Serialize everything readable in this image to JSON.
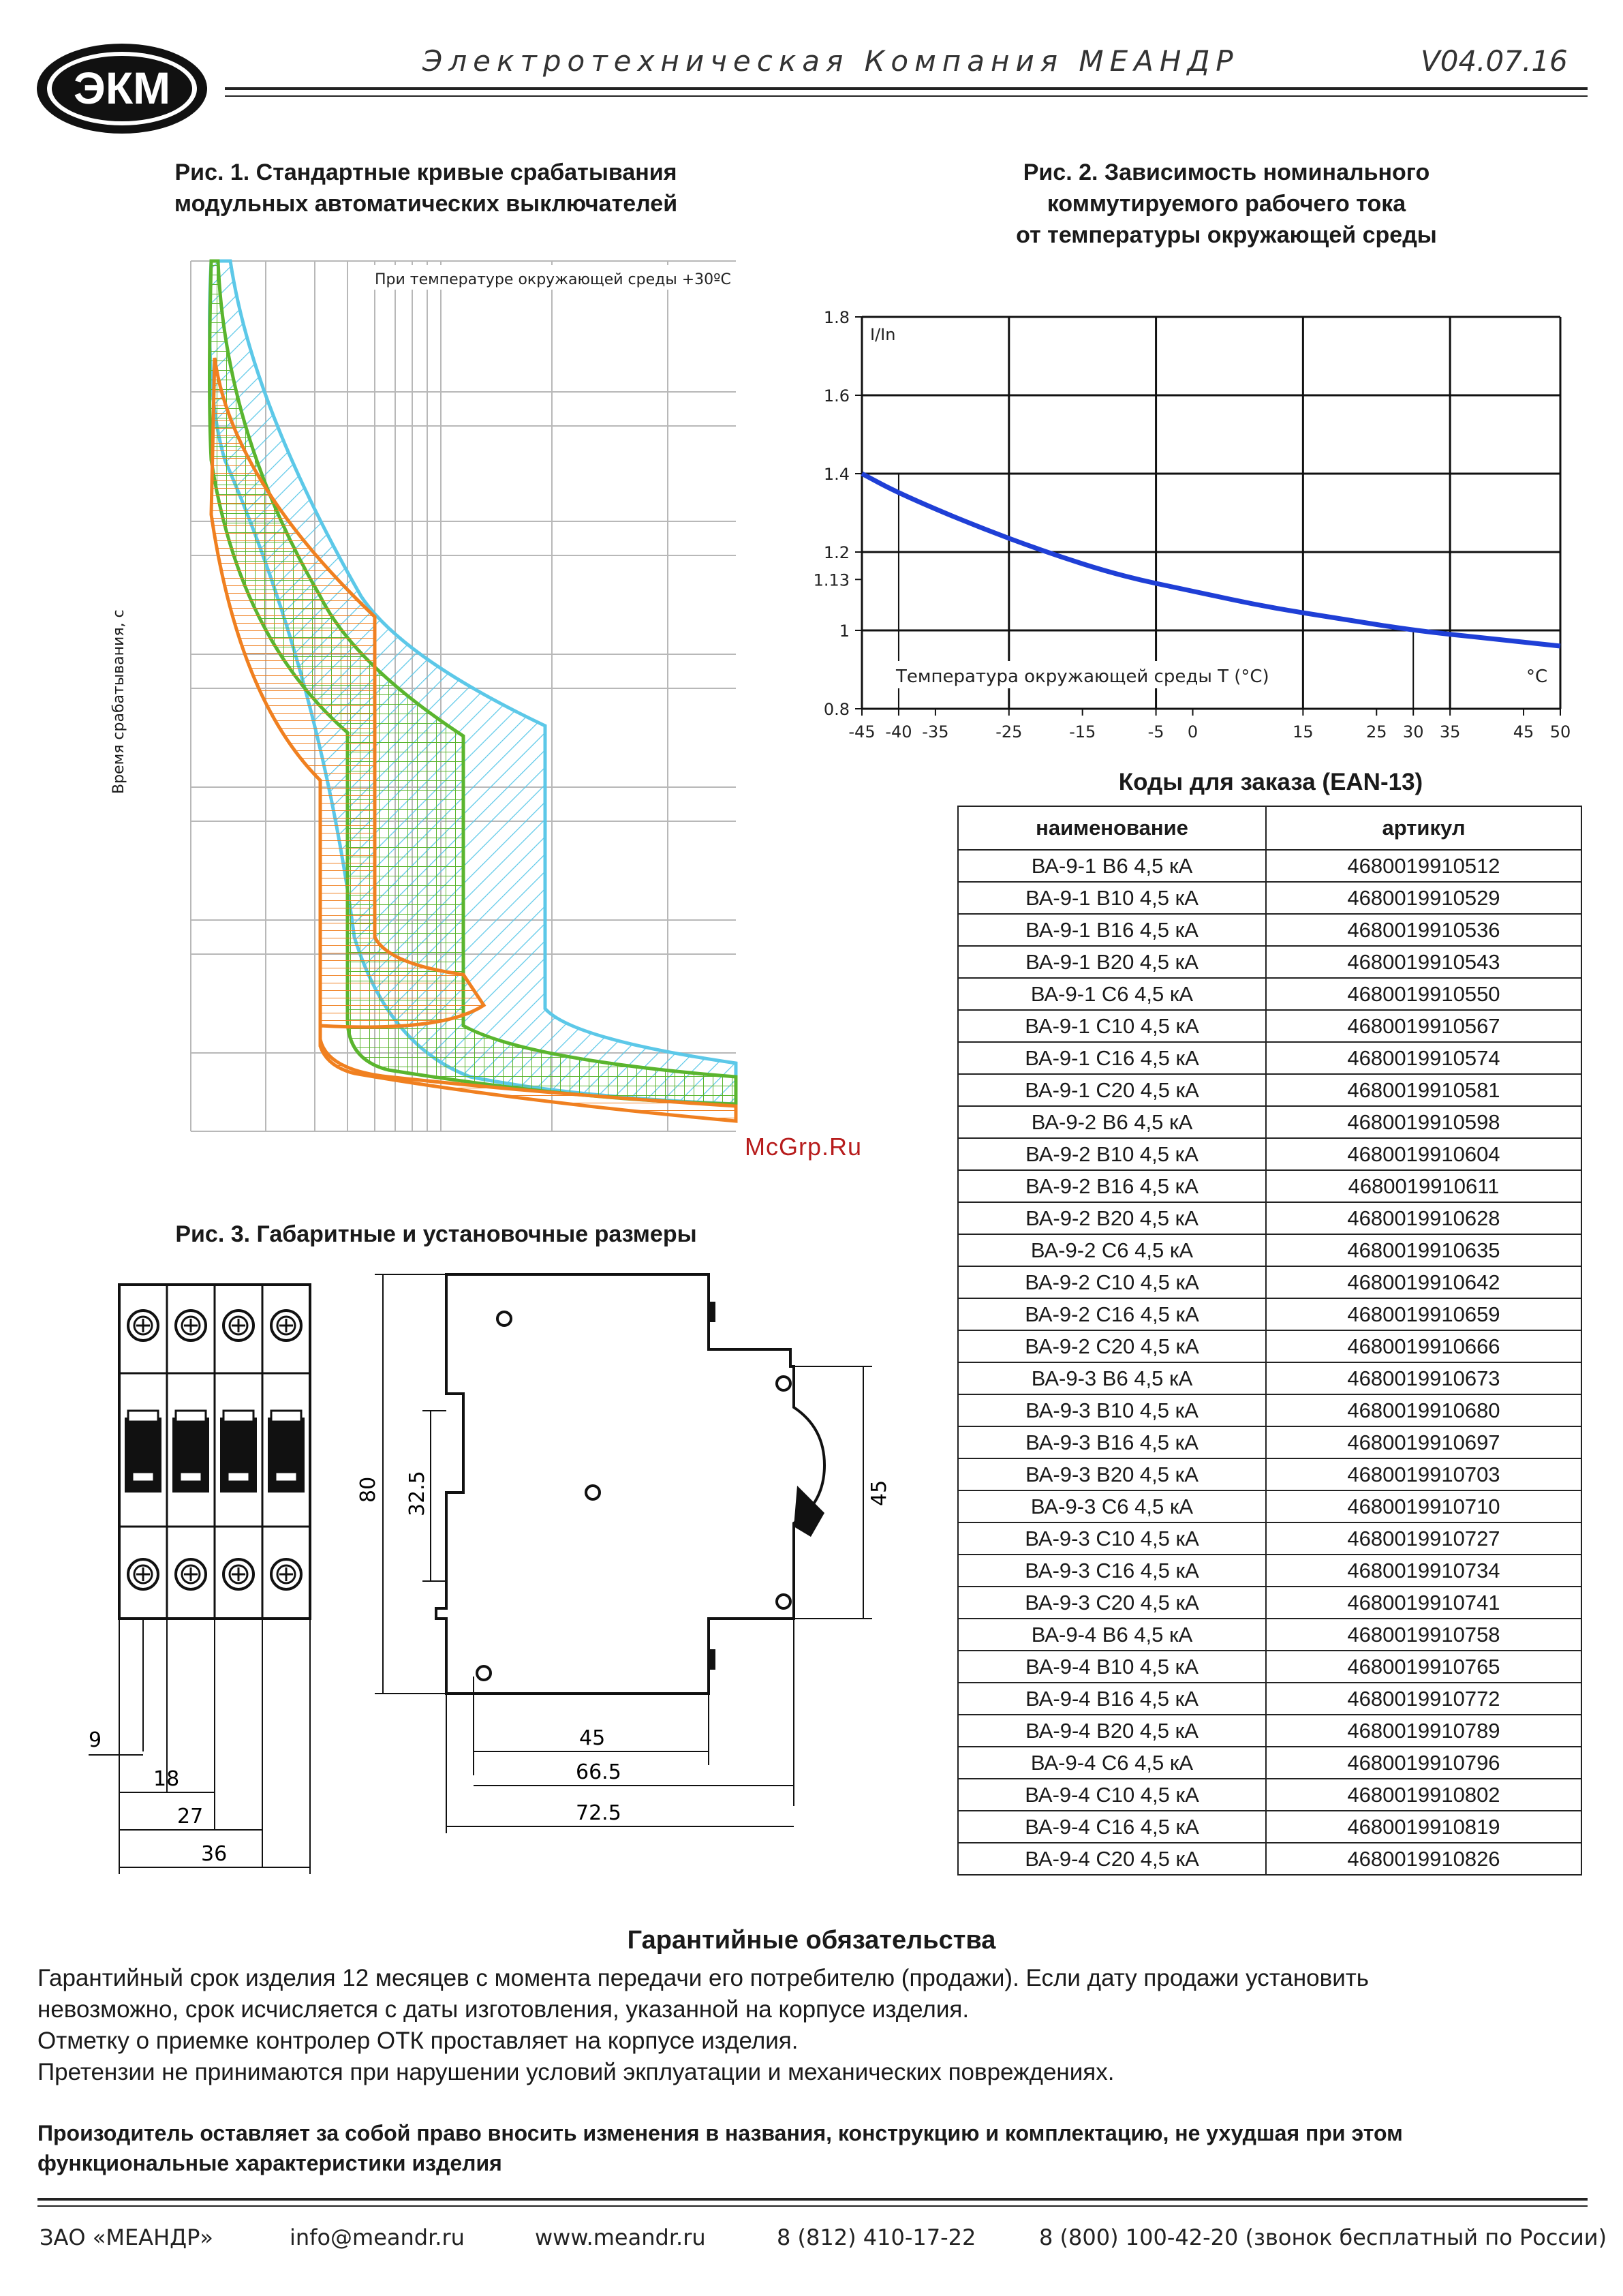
{
  "header": {
    "logo_text": "ЭКМ",
    "company": "Электротехническая Компания МЕАНДР",
    "version": "V04.07.16"
  },
  "fig1": {
    "title_line1": "Рис. 1. Стандартные кривые срабатывания",
    "title_line2": "модульных автоматических выключателей",
    "note": "При температуре окружающей среды +30ºC",
    "ylabel": "Время срабатывания, с"
  },
  "fig2": {
    "title_line1": "Рис. 2. Зависимость номиналь­ного",
    "title_line2": "коммутируемого рабочего тока",
    "title_line3": "от температуры окружающей среды"
  },
  "chart_data": {
    "type": "line",
    "ylabel": "I/In",
    "xlabel": "Температура окружающей среды T (°C)",
    "x_unit": "°C",
    "x_ticks": [
      "-45",
      "-40",
      "-35",
      "-25",
      "-15",
      "-5",
      "0",
      "15",
      "25",
      "30",
      "35",
      "45",
      "50"
    ],
    "y_ticks": [
      "0.8",
      "1",
      "1.13",
      "1.2",
      "1.4",
      "1.6",
      "1.8"
    ],
    "xlim": [
      -45,
      50
    ],
    "ylim": [
      0.8,
      1.8
    ],
    "grid": true,
    "series_color": "#1f3fd6",
    "x": [
      -45,
      -40,
      -30,
      -20,
      -10,
      0,
      10,
      20,
      30,
      40,
      50
    ],
    "y": [
      1.4,
      1.35,
      1.27,
      1.2,
      1.14,
      1.1,
      1.06,
      1.03,
      1.0,
      0.98,
      0.96
    ]
  },
  "fig3": {
    "title": "Рис. 3. Габаритные и установочные размеры",
    "dims": {
      "d9": "9",
      "d18": "18",
      "d27": "27",
      "d36": "36",
      "d80": "80",
      "d32_5": "32.5",
      "d45v": "45",
      "d45h": "45",
      "d66_5": "66.5",
      "d72_5": "72.5"
    }
  },
  "codes": {
    "title": "Коды для заказа (EAN-13)",
    "headers": [
      "наименование",
      "артикул"
    ],
    "rows": [
      [
        "ВА-9-1 B6 4,5 кА",
        "4680019910512"
      ],
      [
        "ВА-9-1 B10 4,5 кА",
        "4680019910529"
      ],
      [
        "ВА-9-1 B16 4,5 кА",
        "4680019910536"
      ],
      [
        "ВА-9-1 B20 4,5 кА",
        "4680019910543"
      ],
      [
        "ВА-9-1 C6 4,5 кА",
        "4680019910550"
      ],
      [
        "ВА-9-1 C10 4,5 кА",
        "4680019910567"
      ],
      [
        "ВА-9-1 C16 4,5 кА",
        "4680019910574"
      ],
      [
        "ВА-9-1 C20 4,5 кА",
        "4680019910581"
      ],
      [
        "ВА-9-2 B6 4,5 кА",
        "4680019910598"
      ],
      [
        "ВА-9-2 B10 4,5 кА",
        "4680019910604"
      ],
      [
        "ВА-9-2 B16 4,5 кА",
        "4680019910611"
      ],
      [
        "ВА-9-2 B20 4,5 кА",
        "4680019910628"
      ],
      [
        "ВА-9-2 C6 4,5 кА",
        "4680019910635"
      ],
      [
        "ВА-9-2 C10 4,5 кА",
        "4680019910642"
      ],
      [
        "ВА-9-2 C16 4,5 кА",
        "4680019910659"
      ],
      [
        "ВА-9-2 C20 4,5 кА",
        "4680019910666"
      ],
      [
        "ВА-9-3 B6 4,5 кА",
        "4680019910673"
      ],
      [
        "ВА-9-3 B10 4,5 кА",
        "4680019910680"
      ],
      [
        "ВА-9-3 B16 4,5 кА",
        "4680019910697"
      ],
      [
        "ВА-9-3 B20 4,5 кА",
        "4680019910703"
      ],
      [
        "ВА-9-3 C6 4,5 кА",
        "4680019910710"
      ],
      [
        "ВА-9-3 C10 4,5 кА",
        "4680019910727"
      ],
      [
        "ВА-9-3 C16 4,5 кА",
        "4680019910734"
      ],
      [
        "ВА-9-3 C20 4,5 кА",
        "4680019910741"
      ],
      [
        "ВА-9-4 B6 4,5 кА",
        "4680019910758"
      ],
      [
        "ВА-9-4 B10 4,5 кА",
        "4680019910765"
      ],
      [
        "ВА-9-4 B16 4,5 кА",
        "4680019910772"
      ],
      [
        "ВА-9-4 B20 4,5 кА",
        "4680019910789"
      ],
      [
        "ВА-9-4 C6 4,5 кА",
        "4680019910796"
      ],
      [
        "ВА-9-4 C10 4,5 кА",
        "4680019910802"
      ],
      [
        "ВА-9-4 C16 4,5 кА",
        "4680019910819"
      ],
      [
        "ВА-9-4 C20 4,5 кА",
        "4680019910826"
      ]
    ]
  },
  "watermark": "McGrp.Ru",
  "warranty": {
    "title": "Гарантийные обязательства",
    "line1": "Гарантийный срок изделия 12 месяцев с момента передачи его потребителю (продажи). Если дату продажи установить",
    "line2": "невозможно, срок исчисляется с даты изготовления, указанной на корпусе изделия.",
    "line3": "Отметку о приемке контролер ОТК проставляет на корпусе изделия.",
    "line4": "Претензии не принимаются при нарушении условий экплуатации и механических повреждениях."
  },
  "maker_note": {
    "line1": "Произодитель оставляет за собой право вносить изменения в названия, конструкцию и комплектацию, не ухудшая при этом",
    "line2": "функциональные характеристики изделия"
  },
  "footer": {
    "company": "ЗАО «МЕАНДР»",
    "email": "info@meandr.ru",
    "site": "www.meandr.ru",
    "phone1": "8 (812) 410-17-22",
    "phone2": "8 (800) 100-42-20 (звонок бесплатный по России)"
  },
  "colors": {
    "curve_orange": "#f08020",
    "curve_green": "#5ab52e",
    "curve_blue": "#5cc8e8",
    "line_blue": "#1f3fd6"
  }
}
